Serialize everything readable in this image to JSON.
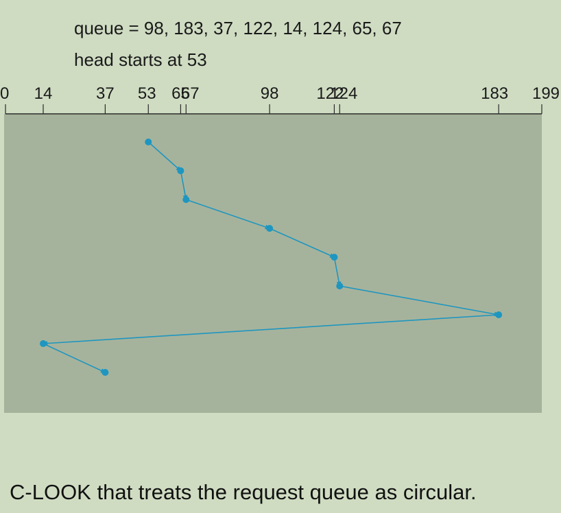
{
  "queue_text": "queue = 98, 183, 37, 122, 14, 124, 65, 67",
  "head_text": "head starts at 53",
  "caption": "C-LOOK that treats the request queue as circular.",
  "axis": {
    "min": 0,
    "max": 199,
    "ticks": [
      {
        "value": 0,
        "label": "0"
      },
      {
        "value": 14,
        "label": "14"
      },
      {
        "value": 37,
        "label": "37"
      },
      {
        "value": 53,
        "label": "53"
      },
      {
        "value": 65,
        "label": "65"
      },
      {
        "value": 67,
        "label": "67"
      },
      {
        "value": 98,
        "label": "98"
      },
      {
        "value": 122,
        "label": "122"
      },
      {
        "value": 124,
        "label": "124"
      },
      {
        "value": 183,
        "label": "183"
      },
      {
        "value": 199,
        "label": "199"
      }
    ]
  },
  "path": [
    53,
    65,
    67,
    98,
    122,
    124,
    183,
    14,
    37
  ],
  "colors": {
    "page_bg": "#cfdcc2",
    "plot_bg": "#a6b39c",
    "path": "#1e96c0",
    "axis": "#2a2a2a"
  }
}
